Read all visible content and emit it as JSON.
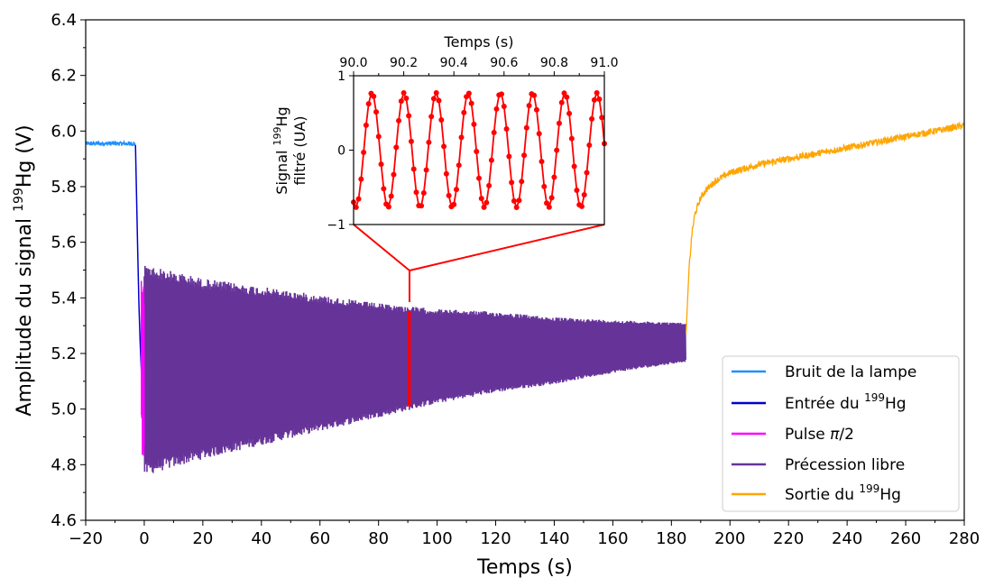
{
  "chart_data": [
    {
      "type": "line",
      "xlabel": "Temps (s)",
      "ylabel_prefix": "Amplitude du signal ",
      "ylabel_sup": "199",
      "ylabel_suffix": "Hg (V)",
      "xlim": [
        -20,
        280
      ],
      "ylim": [
        4.6,
        6.4
      ],
      "xticks": [
        -20,
        0,
        20,
        40,
        60,
        80,
        100,
        120,
        140,
        160,
        180,
        200,
        220,
        240,
        260,
        280
      ],
      "xtick_labels": [
        "−20",
        "0",
        "20",
        "40",
        "60",
        "80",
        "100",
        "120",
        "140",
        "160",
        "180",
        "200",
        "220",
        "240",
        "260",
        "280"
      ],
      "yticks": [
        4.6,
        4.8,
        5.0,
        5.2,
        5.4,
        5.6,
        5.8,
        6.0,
        6.2,
        6.4
      ],
      "ytick_labels": [
        "4.6",
        "4.8",
        "5.0",
        "5.2",
        "5.4",
        "5.6",
        "5.8",
        "6.0",
        "6.2",
        "6.4"
      ],
      "grid": false,
      "legend_position": "bottom-right",
      "series": [
        {
          "name": "Bruit de la lampe",
          "color": "#1e90ff",
          "kind": "noise",
          "x": [
            -20,
            -3
          ],
          "y_mean": 5.955,
          "y_noise": 0.008
        },
        {
          "name_prefix": "Entrée du ",
          "name_sup": "199",
          "name_suffix": "Hg",
          "color": "#0000cd",
          "kind": "curve",
          "x": [
            -3,
            -2.6,
            -2.2,
            -1.8,
            -1.4,
            -1.0,
            -0.6
          ],
          "y": [
            5.95,
            5.75,
            5.55,
            5.37,
            5.24,
            5.14,
            5.08
          ]
        },
        {
          "name_prefix": "Pulse ",
          "name_italic": "π",
          "name_suffix": "/2",
          "color": "#ff00ff",
          "kind": "burst",
          "x": [
            -1,
            0
          ],
          "y_center": 5.15,
          "amplitude": 0.32
        },
        {
          "name": "Précession libre",
          "color": "#663399",
          "kind": "envelope",
          "x": [
            0,
            20,
            40,
            60,
            80,
            100,
            120,
            140,
            160,
            185
          ],
          "y_upper": [
            5.52,
            5.47,
            5.44,
            5.41,
            5.38,
            5.36,
            5.35,
            5.33,
            5.32,
            5.31
          ],
          "y_lower": [
            4.76,
            4.82,
            4.87,
            4.92,
            4.97,
            5.02,
            5.06,
            5.09,
            5.13,
            5.17
          ]
        },
        {
          "name_prefix": "Sortie du ",
          "name_sup": "199",
          "name_suffix": "Hg",
          "color": "#ffa500",
          "kind": "curve",
          "x": [
            185,
            186,
            187,
            188,
            190,
            192,
            195,
            200,
            210,
            220,
            240,
            260,
            280
          ],
          "y": [
            5.27,
            5.5,
            5.63,
            5.7,
            5.76,
            5.79,
            5.82,
            5.85,
            5.88,
            5.9,
            5.94,
            5.98,
            6.02
          ]
        },
        {
          "name": "",
          "color": "#ff0000",
          "kind": "highlight",
          "x": [
            90,
            91
          ],
          "y": [
            5.01,
            5.35
          ]
        }
      ]
    },
    {
      "type": "line",
      "xlabel": "Temps (s)",
      "ylabel_line1_prefix": "Signal ",
      "ylabel_line1_sup": "199",
      "ylabel_line1_suffix": "Hg",
      "ylabel_line2": "filtré (UA)",
      "xlim": [
        90.0,
        91.0
      ],
      "ylim": [
        -1,
        1
      ],
      "xticks": [
        90.0,
        90.2,
        90.4,
        90.6,
        90.8,
        91.0
      ],
      "xtick_labels": [
        "90.0",
        "90.2",
        "90.4",
        "90.6",
        "90.8",
        "91.0"
      ],
      "yticks": [
        -1,
        0,
        1
      ],
      "ytick_labels": [
        "−1",
        "0",
        "1"
      ],
      "grid": false,
      "series": [
        {
          "name": "",
          "color": "#ff0000",
          "marker": "circle",
          "frequency_hz": 7.8,
          "amplitude": 0.77,
          "phase_rad": -2.0,
          "sample_interval_s": 0.01
        }
      ]
    }
  ]
}
